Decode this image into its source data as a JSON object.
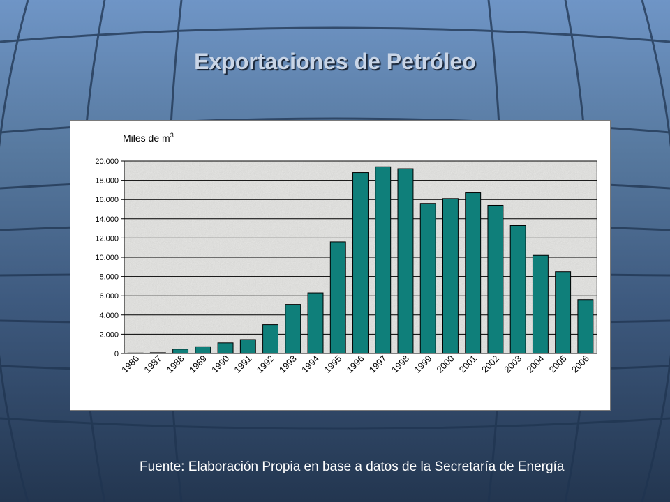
{
  "slide": {
    "title": "Exportaciones de Petróleo",
    "source": "Fuente: Elaboración Propia en base a datos de la Secretaría de Energía"
  },
  "colors": {
    "bar": "#0f7f7a",
    "bar_stroke": "#000000",
    "plot_background": "#e6e6e3",
    "gridline": "#000000",
    "title_text": "#c9d5e6",
    "source_text": "#ffffff"
  },
  "chart_data": {
    "type": "bar",
    "unit_label": "Miles de m",
    "unit_superscript": "3",
    "categories": [
      "1986",
      "1987",
      "1988",
      "1989",
      "1990",
      "1991",
      "1992",
      "1993",
      "1994",
      "1995",
      "1996",
      "1997",
      "1998",
      "1999",
      "2000",
      "2001",
      "2002",
      "2003",
      "2004",
      "2005",
      "2006"
    ],
    "values": [
      50,
      80,
      450,
      700,
      1100,
      1450,
      3000,
      5100,
      6300,
      11600,
      18800,
      19400,
      19200,
      15600,
      16100,
      16700,
      15400,
      13300,
      10200,
      8500,
      5600
    ],
    "ylim": [
      0,
      20000
    ],
    "y_ticks": [
      0,
      2000,
      4000,
      6000,
      8000,
      10000,
      12000,
      14000,
      16000,
      18000,
      20000
    ],
    "y_tick_labels": [
      "0",
      "2.000",
      "4.000",
      "6.000",
      "8.000",
      "10.000",
      "12.000",
      "14.000",
      "16.000",
      "18.000",
      "20.000"
    ],
    "grid": true,
    "legend": "none"
  }
}
